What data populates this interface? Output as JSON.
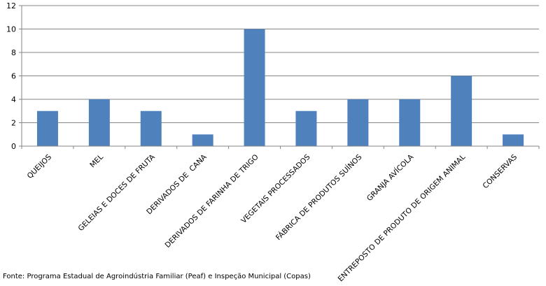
{
  "chart_data": {
    "type": "bar",
    "categories": [
      "QUEIJOS",
      "MEL",
      "GELEIAS E DOCES DE FRUTA",
      "DERIVADOS DE  CANA",
      "DERIVADOS DE FARINHA DE TRIGO",
      "VEGETAIS PROCESSADOS",
      "FÁBRICA DE PRODUTOS SUÍNOS",
      "GRANJA AVÍCOLA",
      "ENTREPOSTO DE PRODUTO DE ORIGEM ANIMAL",
      "CONSERVAS"
    ],
    "values": [
      3,
      4,
      3,
      1,
      10,
      3,
      4,
      4,
      6,
      1
    ],
    "ylim": [
      0,
      12
    ],
    "yticks": [
      0,
      2,
      4,
      6,
      8,
      10,
      12
    ],
    "grid": true,
    "bar_color": "#4F81BD",
    "grid_color": "#868686"
  },
  "source_note": "Fonte: Programa Estadual de Agroindústria Familiar (Peaf) e Inspeção Municipal (Copas)"
}
